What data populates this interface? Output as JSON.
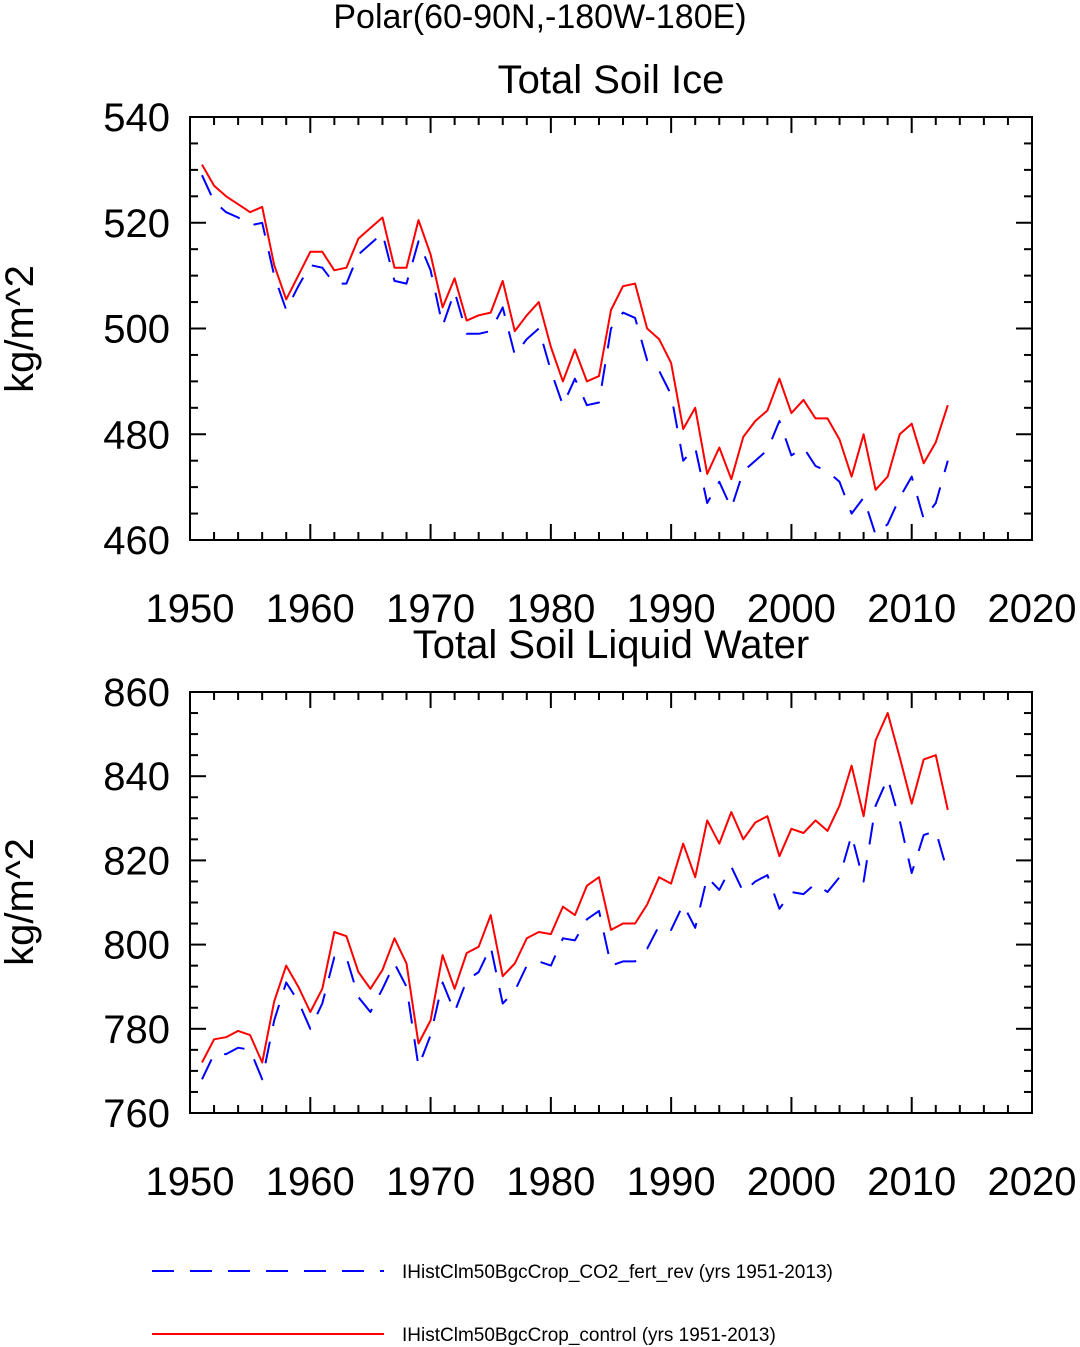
{
  "figure": {
    "title": "Polar(60-90N,-180W-180E)",
    "legend_position": "bottom"
  },
  "legend": [
    {
      "label": "IHistClm50BgcCrop_CO2_fert_rev (yrs 1951-2013)",
      "color": "#0000ff",
      "dash": "dashed"
    },
    {
      "label": "IHistClm50BgcCrop_control (yrs 1951-2013)",
      "color": "#ff0000",
      "dash": "solid"
    }
  ],
  "chart_data": [
    {
      "type": "line",
      "title": "Total Soil Ice",
      "ylabel": "kg/m^2",
      "xlabel": "",
      "xlim": [
        1950,
        2020
      ],
      "ylim": [
        460,
        540
      ],
      "xticks": [
        1950,
        1960,
        1970,
        1980,
        1990,
        2000,
        2010,
        2020
      ],
      "yticks": [
        460,
        480,
        500,
        520,
        540
      ],
      "grid": false,
      "x": [
        1951,
        1952,
        1953,
        1954,
        1955,
        1956,
        1957,
        1958,
        1959,
        1960,
        1961,
        1962,
        1963,
        1964,
        1965,
        1966,
        1967,
        1968,
        1969,
        1970,
        1971,
        1972,
        1973,
        1974,
        1975,
        1976,
        1977,
        1978,
        1979,
        1980,
        1981,
        1982,
        1983,
        1984,
        1985,
        1986,
        1987,
        1988,
        1989,
        1990,
        1991,
        1992,
        1993,
        1994,
        1995,
        1996,
        1997,
        1998,
        1999,
        2000,
        2001,
        2002,
        2003,
        2004,
        2005,
        2006,
        2007,
        2008,
        2009,
        2010,
        2011,
        2012,
        2013
      ],
      "series": [
        {
          "name": "IHistClm50BgcCrop_CO2_fert_rev (yrs 1951-2013)",
          "color": "#0000ff",
          "dash": "dashed",
          "values": [
            529,
            524,
            522,
            521,
            519.5,
            520,
            510,
            503.5,
            508,
            512,
            511.5,
            508.5,
            508.5,
            514,
            516,
            518,
            509,
            508.5,
            516.5,
            511,
            500.5,
            507,
            499,
            499,
            499.5,
            504,
            495,
            498,
            500,
            492,
            485.5,
            490.5,
            485.5,
            486,
            500,
            503,
            502,
            494,
            492,
            487.5,
            475,
            477.5,
            467,
            471,
            466,
            473,
            475,
            477,
            482.5,
            476,
            477.5,
            474,
            473,
            471,
            465,
            468,
            461,
            463,
            468,
            472,
            464,
            467,
            475
          ]
        },
        {
          "name": "IHistClm50BgcCrop_control (yrs 1951-2013)",
          "color": "#ff0000",
          "dash": "solid",
          "values": [
            531,
            527,
            525,
            523.5,
            522,
            523,
            512,
            505.5,
            510,
            514.5,
            514.5,
            511,
            511.5,
            517,
            519,
            521,
            511.5,
            511.5,
            520.5,
            514,
            504,
            509.5,
            501.5,
            502.5,
            503,
            509,
            499.5,
            502.5,
            505,
            496.5,
            490,
            496,
            490,
            491,
            503.5,
            508,
            508.5,
            500,
            498,
            493.5,
            481,
            485,
            472.5,
            477.5,
            471.5,
            479.5,
            482.5,
            484.5,
            490.5,
            484,
            486.5,
            483,
            483,
            479,
            472,
            480,
            469.5,
            472,
            480,
            482,
            474.5,
            478.5,
            485.5
          ]
        }
      ]
    },
    {
      "type": "line",
      "title": "Total Soil Liquid Water",
      "ylabel": "kg/m^2",
      "xlabel": "",
      "xlim": [
        1950,
        2020
      ],
      "ylim": [
        760,
        860
      ],
      "xticks": [
        1950,
        1960,
        1970,
        1980,
        1990,
        2000,
        2010,
        2020
      ],
      "yticks": [
        760,
        780,
        800,
        820,
        840,
        860
      ],
      "grid": false,
      "x": [
        1951,
        1952,
        1953,
        1954,
        1955,
        1956,
        1957,
        1958,
        1959,
        1960,
        1961,
        1962,
        1963,
        1964,
        1965,
        1966,
        1967,
        1968,
        1969,
        1970,
        1971,
        1972,
        1973,
        1974,
        1975,
        1976,
        1977,
        1978,
        1979,
        1980,
        1981,
        1982,
        1983,
        1984,
        1985,
        1986,
        1987,
        1988,
        1989,
        1990,
        1991,
        1992,
        1993,
        1994,
        1995,
        1996,
        1997,
        1998,
        1999,
        2000,
        2001,
        2002,
        2003,
        2004,
        2005,
        2006,
        2007,
        2008,
        2009,
        2010,
        2011,
        2012,
        2013
      ],
      "series": [
        {
          "name": "IHistClm50BgcCrop_CO2_fert_rev (yrs 1951-2013)",
          "color": "#0000ff",
          "dash": "dashed",
          "values": [
            768,
            774,
            774,
            775.5,
            775,
            768,
            782,
            791,
            786.5,
            780,
            786,
            797,
            797,
            787.5,
            784,
            789.5,
            795.5,
            790,
            771,
            778.5,
            791,
            784,
            791.5,
            793.5,
            799.5,
            786,
            789,
            795,
            796,
            795,
            801.5,
            801,
            806,
            808,
            795,
            796,
            796,
            799,
            804.5,
            803.5,
            809.5,
            804,
            816,
            813,
            818.5,
            812.5,
            815,
            816.5,
            808.5,
            812.5,
            812,
            814.5,
            812.5,
            816,
            826,
            815,
            833,
            839.5,
            829.5,
            817,
            826,
            827,
            817
          ]
        },
        {
          "name": "IHistClm50BgcCrop_control (yrs 1951-2013)",
          "color": "#ff0000",
          "dash": "solid",
          "values": [
            772,
            777.5,
            778,
            779.5,
            778.5,
            772,
            786.5,
            795,
            790,
            784,
            789.5,
            803,
            802,
            793.5,
            789.5,
            794,
            801.5,
            795.5,
            776.5,
            782,
            797.5,
            789.5,
            798,
            799.5,
            807,
            792.5,
            795.5,
            801.5,
            803,
            802.5,
            809,
            807,
            814,
            816,
            803.5,
            805,
            805,
            809.5,
            816,
            814.5,
            824,
            816,
            829.5,
            824,
            831.5,
            825,
            829,
            830.5,
            821,
            827.5,
            826.5,
            829.5,
            827,
            833,
            842.5,
            830.5,
            848.5,
            855,
            844.5,
            833.5,
            844,
            845,
            832
          ]
        }
      ]
    }
  ]
}
